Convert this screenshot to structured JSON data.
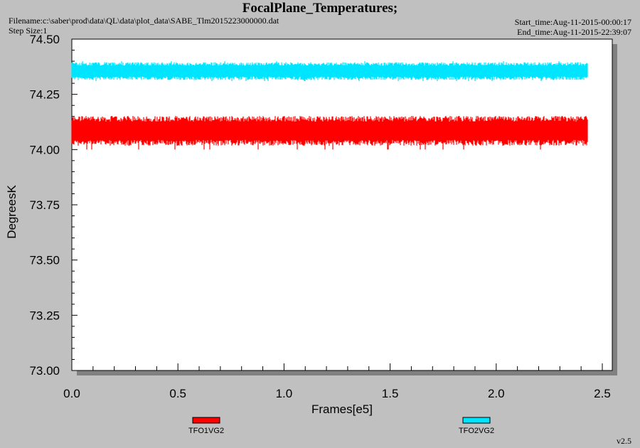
{
  "header": {
    "title": "FocalPlane_Temperatures;",
    "filename": "Filename:c:\\saber\\prod\\data\\QL\\data\\plot_data\\SABE_Tlm2015223000000.dat",
    "step_size": "Step Size:1",
    "start_time": "Start_time:Aug-11-2015-00:00:17",
    "end_time": "End_time:Aug-11-2015-22:39:07",
    "version": "v2.5"
  },
  "chart_data": {
    "type": "line",
    "title": "FocalPlane_Temperatures;",
    "xlabel": "Frames[e5]",
    "ylabel": "DegreesK",
    "xlim": [
      0.0,
      2.5
    ],
    "ylim": [
      73.0,
      74.5
    ],
    "x_ticks": [
      "0.0",
      "0.5",
      "1.0",
      "1.5",
      "2.0",
      "2.5"
    ],
    "y_ticks": [
      "73.00",
      "73.25",
      "73.50",
      "73.75",
      "74.00",
      "74.25",
      "74.50"
    ],
    "legend_position": "bottom",
    "grid": false,
    "series": [
      {
        "name": "TFO1VG2",
        "color": "#ff0000",
        "x_range": [
          0.0,
          2.43
        ],
        "mean": 74.085,
        "min": 74.0,
        "max": 74.15
      },
      {
        "name": "TFO2VG2",
        "color": "#00e5ff",
        "x_range": [
          0.0,
          2.43
        ],
        "mean": 74.355,
        "min": 74.31,
        "max": 74.4
      }
    ]
  }
}
